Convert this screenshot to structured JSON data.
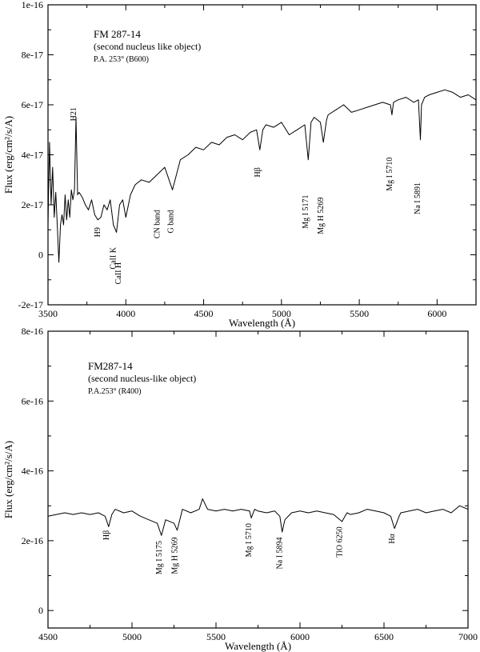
{
  "chart_data": [
    {
      "type": "line",
      "xlabel": "Wavelength (Å)",
      "ylabel": "Flux (erg/cm²/s/A)",
      "xlim": [
        3500,
        6250
      ],
      "ylim": [
        -2e-17,
        1e-16
      ],
      "x_ticks": [
        3500,
        4000,
        4500,
        5000,
        5500,
        6000
      ],
      "x_tick_labels": [
        "3500",
        "4000",
        "4500",
        "5000",
        "5500",
        "6000"
      ],
      "y_ticks": [
        -2e-17,
        0,
        2e-17,
        4e-17,
        6e-17,
        8e-17,
        1e-16
      ],
      "y_tick_labels": [
        "-2e-17",
        "0",
        "2e-17",
        "4e-17",
        "6e-17",
        "8e-17",
        "1e-16"
      ],
      "legend_lines": [
        "FM 287-14",
        "(second nucleus like object)",
        "P.A. 253° (B600)"
      ],
      "series": [
        {
          "x": [
            3500,
            3510,
            3520,
            3530,
            3540,
            3550,
            3560,
            3570,
            3580,
            3590,
            3600,
            3610,
            3620,
            3630,
            3640,
            3650,
            3660,
            3670,
            3680,
            3690,
            3700,
            3720,
            3740,
            3760,
            3780,
            3800,
            3820,
            3840,
            3860,
            3880,
            3900,
            3920,
            3940,
            3960,
            3980,
            4000,
            4030,
            4060,
            4100,
            4150,
            4200,
            4250,
            4300,
            4350,
            4400,
            4450,
            4500,
            4550,
            4600,
            4650,
            4700,
            4750,
            4800,
            4840,
            4861,
            4880,
            4900,
            4950,
            5000,
            5050,
            5100,
            5150,
            5172,
            5190,
            5210,
            5250,
            5269,
            5290,
            5300,
            5350,
            5400,
            5450,
            5500,
            5550,
            5600,
            5650,
            5700,
            5710,
            5720,
            5750,
            5800,
            5850,
            5880,
            5893,
            5900,
            5920,
            5950,
            6000,
            6050,
            6100,
            6150,
            6200,
            6250
          ],
          "y": [
            1.2e-17,
            4.5e-17,
            2e-17,
            3.5e-17,
            1.5e-17,
            2.5e-17,
            1.1e-17,
            -3e-18,
            1.2e-17,
            1.6e-17,
            1.2e-17,
            2.4e-17,
            1.4e-17,
            2.2e-17,
            1.5e-17,
            2.6e-17,
            2.2e-17,
            2.6e-17,
            5.5e-17,
            2.4e-17,
            2.5e-17,
            2.3e-17,
            2e-17,
            1.8e-17,
            2.2e-17,
            1.6e-17,
            1.4e-17,
            1.5e-17,
            2e-17,
            1.8e-17,
            2.2e-17,
            1.2e-17,
            9e-18,
            2e-17,
            2.2e-17,
            1.5e-17,
            2.4e-17,
            2.8e-17,
            3e-17,
            2.9e-17,
            3.2e-17,
            3.5e-17,
            2.6e-17,
            3.8e-17,
            4e-17,
            4.3e-17,
            4.2e-17,
            4.5e-17,
            4.4e-17,
            4.7e-17,
            4.8e-17,
            4.6e-17,
            4.9e-17,
            5e-17,
            4.2e-17,
            5e-17,
            5.2e-17,
            5.1e-17,
            5.3e-17,
            4.8e-17,
            5e-17,
            5.2e-17,
            3.8e-17,
            5.3e-17,
            5.5e-17,
            5.3e-17,
            4.5e-17,
            5.4e-17,
            5.6e-17,
            5.8e-17,
            6e-17,
            5.7e-17,
            5.8e-17,
            5.9e-17,
            6e-17,
            6.1e-17,
            6e-17,
            5.6e-17,
            6.1e-17,
            6.2e-17,
            6.3e-17,
            6.1e-17,
            6.2e-17,
            4.6e-17,
            6e-17,
            6.3e-17,
            6.4e-17,
            6.5e-17,
            6.6e-17,
            6.5e-17,
            6.3e-17,
            6.4e-17,
            6.2e-17
          ]
        }
      ],
      "annotations": [
        {
          "text": "H21",
          "x": 3680,
          "y": 5.9e-17
        },
        {
          "text": "H9",
          "x": 3835,
          "y": 1.1e-17
        },
        {
          "text": "CaII K",
          "x": 3934,
          "y": 3e-18
        },
        {
          "text": "CaII H",
          "x": 3968,
          "y": -3e-18
        },
        {
          "text": "CN band",
          "x": 4216,
          "y": 1.8e-17
        },
        {
          "text": "G band",
          "x": 4304,
          "y": 1.8e-17
        },
        {
          "text": "Hβ",
          "x": 4861,
          "y": 3.5e-17
        },
        {
          "text": "Mg I 5171",
          "x": 5171,
          "y": 2.4e-17
        },
        {
          "text": "Mg H 5269",
          "x": 5269,
          "y": 2.3e-17
        },
        {
          "text": "Mg I 5710",
          "x": 5710,
          "y": 3.9e-17
        },
        {
          "text": "Na I 5891",
          "x": 5891,
          "y": 2.9e-17
        }
      ]
    },
    {
      "type": "line",
      "xlabel": "Wavelength (Å)",
      "ylabel": "Flux (erg/cm²/s/A)",
      "xlim": [
        4500,
        7000
      ],
      "ylim": [
        -5e-17,
        8e-16
      ],
      "x_ticks": [
        4500,
        5000,
        5500,
        6000,
        6500,
        7000
      ],
      "x_tick_labels": [
        "4500",
        "5000",
        "5500",
        "6000",
        "6500",
        "7000"
      ],
      "y_ticks": [
        0,
        2e-16,
        4e-16,
        6e-16,
        8e-16
      ],
      "y_tick_labels": [
        "0",
        "2e-16",
        "4e-16",
        "6e-16",
        "8e-16"
      ],
      "legend_lines": [
        "FM287-14",
        "(second nucleus-like object)",
        "P.A.253° (R400)"
      ],
      "series": [
        {
          "x": [
            4500,
            4550,
            4600,
            4650,
            4700,
            4750,
            4800,
            4840,
            4861,
            4880,
            4900,
            4950,
            5000,
            5050,
            5100,
            5150,
            5175,
            5200,
            5250,
            5269,
            5290,
            5300,
            5350,
            5400,
            5420,
            5450,
            5500,
            5550,
            5600,
            5650,
            5700,
            5710,
            5730,
            5750,
            5800,
            5850,
            5880,
            5894,
            5910,
            5950,
            6000,
            6050,
            6100,
            6150,
            6200,
            6250,
            6280,
            6300,
            6350,
            6400,
            6450,
            6500,
            6540,
            6563,
            6590,
            6600,
            6650,
            6700,
            6750,
            6800,
            6850,
            6900,
            6950,
            7000
          ],
          "y": [
            2.7e-16,
            2.75e-16,
            2.8e-16,
            2.75e-16,
            2.8e-16,
            2.75e-16,
            2.8e-16,
            2.7e-16,
            2.4e-16,
            2.75e-16,
            2.9e-16,
            2.8e-16,
            2.85e-16,
            2.7e-16,
            2.6e-16,
            2.5e-16,
            2.15e-16,
            2.6e-16,
            2.5e-16,
            2.3e-16,
            2.7e-16,
            2.9e-16,
            2.8e-16,
            2.9e-16,
            3.2e-16,
            2.9e-16,
            2.85e-16,
            2.9e-16,
            2.85e-16,
            2.9e-16,
            2.85e-16,
            2.65e-16,
            2.9e-16,
            2.85e-16,
            2.8e-16,
            2.85e-16,
            2.7e-16,
            2.25e-16,
            2.6e-16,
            2.8e-16,
            2.85e-16,
            2.8e-16,
            2.85e-16,
            2.8e-16,
            2.75e-16,
            2.55e-16,
            2.8e-16,
            2.75e-16,
            2.8e-16,
            2.9e-16,
            2.85e-16,
            2.8e-16,
            2.7e-16,
            2.35e-16,
            2.7e-16,
            2.8e-16,
            2.85e-16,
            2.9e-16,
            2.8e-16,
            2.85e-16,
            2.9e-16,
            2.8e-16,
            3e-16,
            2.9e-16
          ]
        }
      ],
      "annotations": [
        {
          "text": "Hβ",
          "x": 4861,
          "y": 2.3e-16
        },
        {
          "text": "Mg I 5175",
          "x": 5175,
          "y": 2e-16
        },
        {
          "text": "Mg H 5269",
          "x": 5269,
          "y": 2.1e-16
        },
        {
          "text": "Mg I 5710",
          "x": 5710,
          "y": 2.5e-16
        },
        {
          "text": "Na I 5894",
          "x": 5894,
          "y": 2.1e-16
        },
        {
          "text": "TiO 6250",
          "x": 6250,
          "y": 2.4e-16
        },
        {
          "text": "Hα",
          "x": 6563,
          "y": 2.2e-16
        }
      ]
    }
  ]
}
